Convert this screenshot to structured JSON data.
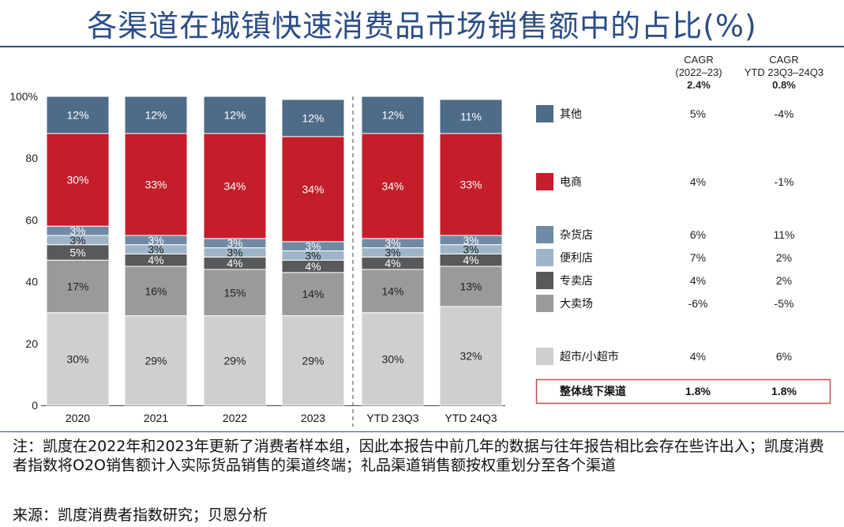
{
  "title": "各渠道在城镇快速消费品市场销售额中的占比(%)",
  "chart_data": {
    "type": "bar",
    "stacked": true,
    "categories": [
      "2020",
      "2021",
      "2022",
      "2023",
      "YTD 23Q3",
      "YTD 24Q3"
    ],
    "y_ticks": [
      "0",
      "20",
      "40",
      "60",
      "80",
      "100%"
    ],
    "ylim": [
      0,
      100
    ],
    "series": [
      {
        "name": "超市/小超市",
        "color": "#cfcfd0",
        "values": [
          30,
          29,
          29,
          29,
          30,
          32
        ],
        "labels": [
          "30%",
          "29%",
          "29%",
          "29%",
          "30%",
          "32%"
        ]
      },
      {
        "name": "大卖场",
        "color": "#999a9c",
        "values": [
          17,
          16,
          15,
          14,
          14,
          13
        ],
        "labels": [
          "17%",
          "16%",
          "15%",
          "14%",
          "14%",
          "13%"
        ]
      },
      {
        "name": "专卖店",
        "color": "#58595b",
        "values": [
          5,
          4,
          4,
          4,
          4,
          4
        ],
        "labels": [
          "5%",
          "4%",
          "4%",
          "4%",
          "4%",
          "4%"
        ]
      },
      {
        "name": "便利店",
        "color": "#9fb4c8",
        "values": [
          3,
          3,
          3,
          3,
          3,
          3
        ],
        "labels": [
          "3%",
          "3%",
          "3%",
          "3%",
          "3%",
          "3%"
        ]
      },
      {
        "name": "杂货店",
        "color": "#6f8aa5",
        "values": [
          3,
          3,
          3,
          3,
          3,
          3
        ],
        "labels": [
          "3%",
          "3%",
          "3%",
          "3%",
          "3%",
          "3%"
        ]
      },
      {
        "name": "电商",
        "color": "#c41e2a",
        "values": [
          30,
          33,
          34,
          34,
          34,
          33
        ],
        "labels": [
          "30%",
          "33%",
          "34%",
          "34%",
          "34%",
          "33%"
        ]
      },
      {
        "name": "其他",
        "color": "#4e6b88",
        "values": [
          12,
          12,
          12,
          12,
          12,
          11
        ],
        "labels": [
          "12%",
          "12%",
          "12%",
          "12%",
          "12%",
          "11%"
        ]
      }
    ],
    "legend_order": [
      "其他",
      "电商",
      "杂货店",
      "便利店",
      "专卖店",
      "大卖场",
      "超市/小超市"
    ],
    "cagr_header_1": "CAGR\n(2022–23)",
    "cagr_header_2": "CAGR\nYTD 23Q3–24Q3",
    "cagr_total_1": "2.4%",
    "cagr_total_2": "0.8%",
    "cagr": {
      "其他": [
        "5%",
        "-4%"
      ],
      "电商": [
        "4%",
        "-1%"
      ],
      "杂货店": [
        "6%",
        "11%"
      ],
      "便利店": [
        "7%",
        "2%"
      ],
      "专卖店": [
        "4%",
        "2%"
      ],
      "大卖场": [
        "-6%",
        "-5%"
      ],
      "超市/小超市": [
        "4%",
        "6%"
      ]
    },
    "total_row": {
      "label": "整体线下渠道",
      "values": [
        "1.8%",
        "1.8%"
      ]
    },
    "colors": {
      "highlight_box": "#c0504d",
      "title": "#2b4d85"
    }
  },
  "notes": "注：凯度在2022年和2023年更新了消费者样本组，因此本报告中前几年的数据与往年报告相比会存在些许出入；凯度消费者指数将O2O销售额计入实际货品销售的渠道终端；礼品渠道销售额按权重划分至各个渠道",
  "source": "来源：凯度消费者指数研究；贝恩分析"
}
